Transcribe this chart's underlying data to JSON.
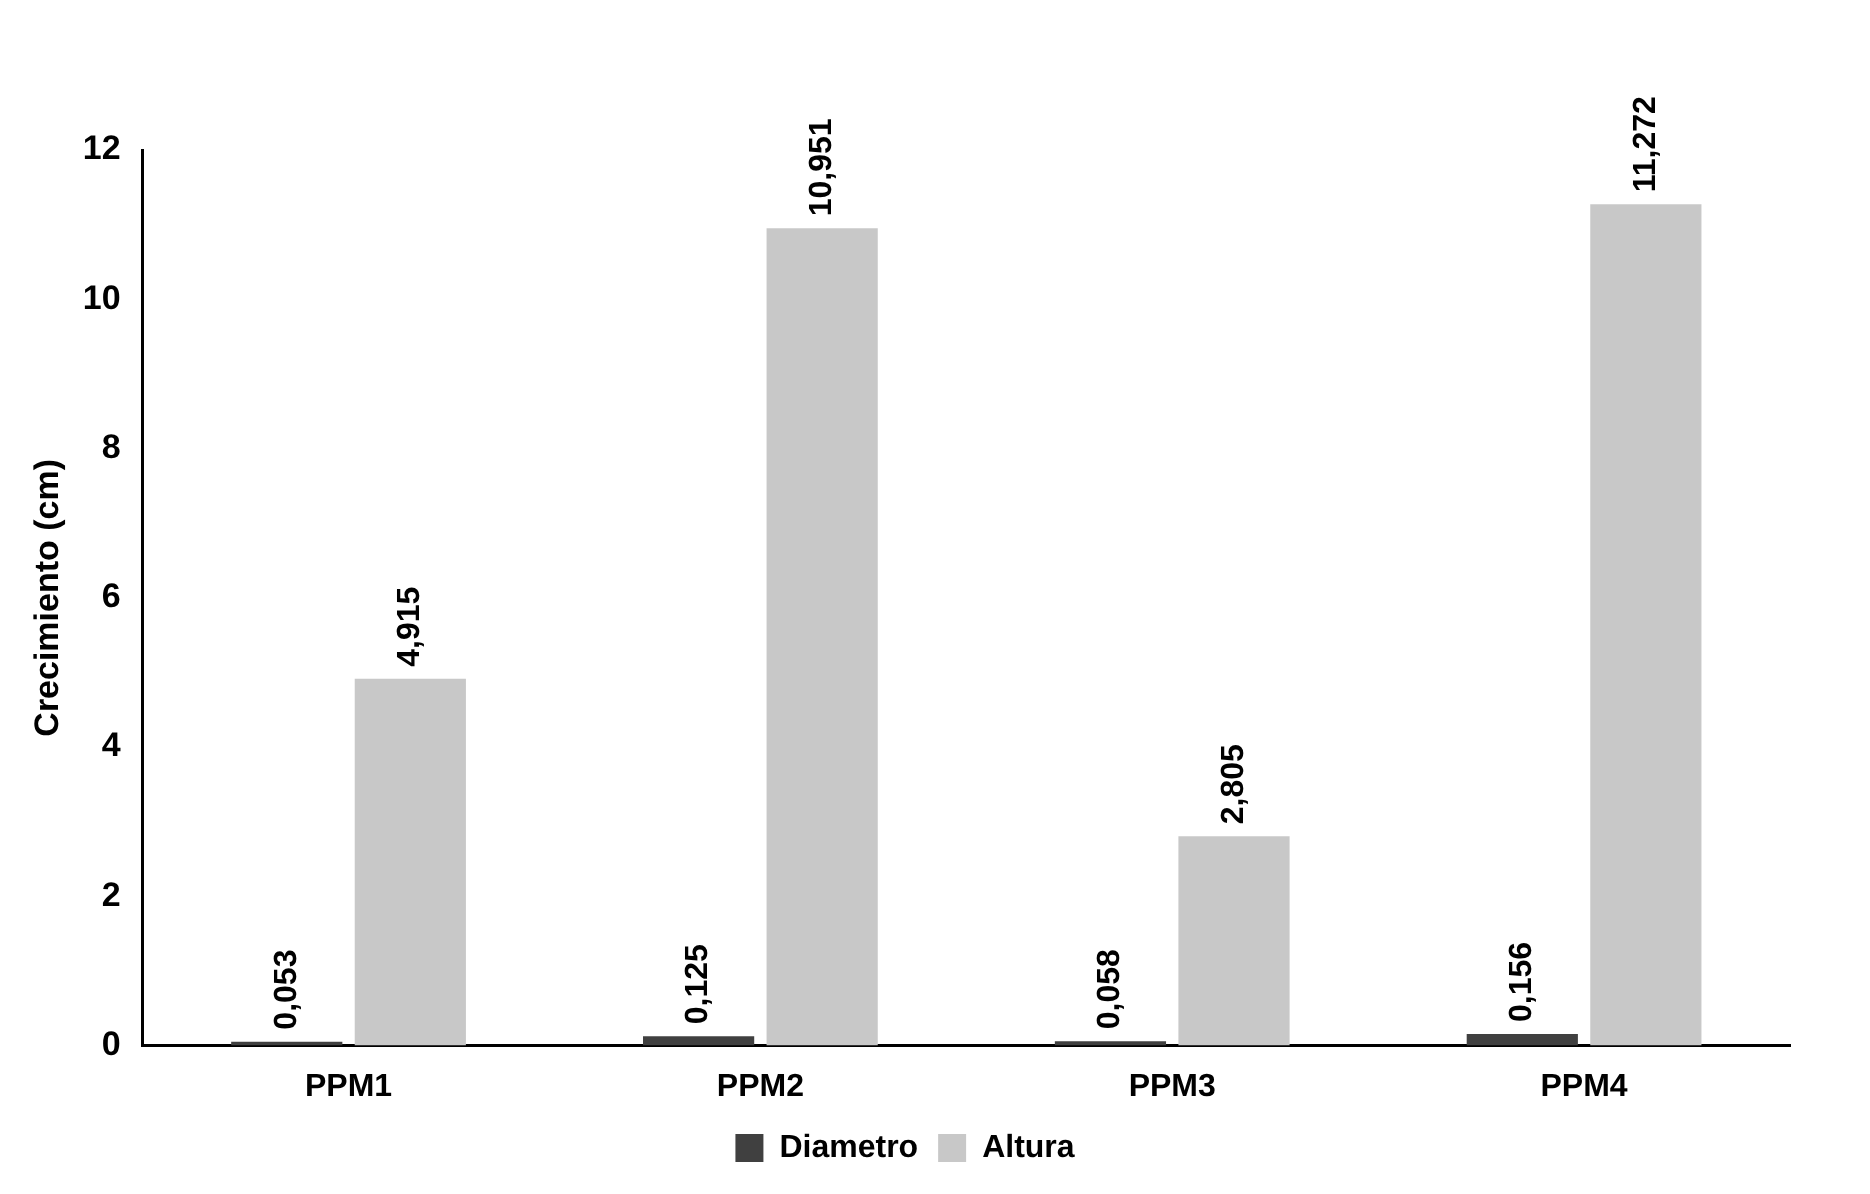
{
  "chart_data": {
    "type": "bar",
    "ylabel": "Crecimiento (cm)",
    "categories": [
      "PPM1",
      "PPM2",
      "PPM3",
      "PPM4"
    ],
    "series": [
      {
        "name": "Diametro",
        "color": "#404040",
        "values": [
          0.053,
          0.125,
          0.058,
          0.156
        ],
        "value_labels": [
          "0,053",
          "0,125",
          "0,058",
          "0,156"
        ]
      },
      {
        "name": "Altura",
        "color": "#c8c8c8",
        "values": [
          4.915,
          10.951,
          2.805,
          11.272
        ],
        "value_labels": [
          "4,915",
          "10,951",
          "2,805",
          "11,272"
        ]
      }
    ],
    "ylim": [
      0,
      12
    ],
    "yticks": [
      0,
      2,
      4,
      6,
      8,
      10,
      12
    ],
    "grid": false,
    "legend": "bottom"
  }
}
